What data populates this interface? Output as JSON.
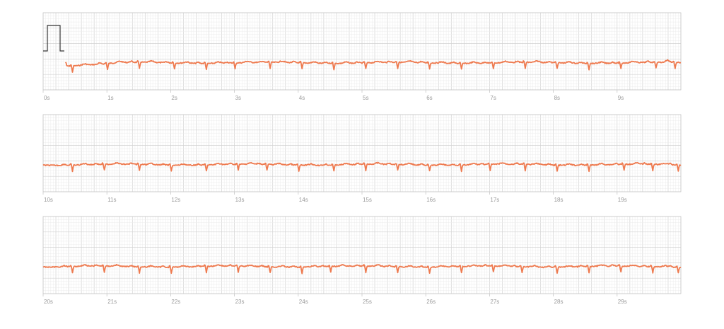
{
  "colors": {
    "trace": "#ee7a4f",
    "calibration": "#333333",
    "major_grid": "#d2d2d2",
    "minor_grid": "#ececec",
    "tick_text": "#9a9a9a"
  },
  "chart_data": {
    "type": "line",
    "title": "",
    "xlabel": "",
    "ylabel": "",
    "grid": true,
    "seconds_per_strip": 10,
    "signal_start_s": 0.35,
    "calibration_pulse": true,
    "strips": [
      {
        "xlim": [
          0,
          10
        ],
        "tick_labels": [
          "0s",
          "1s",
          "2s",
          "3s",
          "4s",
          "5s",
          "6s",
          "7s",
          "8s",
          "9s"
        ],
        "series": [
          {
            "beats_s": [
              0.45,
              1.0,
              1.5,
              2.05,
              2.55,
              3.0,
              3.55,
              4.05,
              4.55,
              5.05,
              5.55,
              6.05,
              6.55,
              7.05,
              7.55,
              8.05,
              8.55,
              9.05,
              9.6,
              9.9
            ]
          }
        ]
      },
      {
        "xlim": [
          10,
          20
        ],
        "tick_labels": [
          "10s",
          "11s",
          "12s",
          "13s",
          "14s",
          "15s",
          "16s",
          "17s",
          "18s",
          "19s"
        ],
        "series": [
          {
            "beats_s": [
              10.45,
              10.95,
              11.5,
              12.0,
              12.55,
              13.05,
              13.5,
              14.0,
              14.55,
              15.05,
              15.55,
              16.05,
              16.55,
              17.0,
              17.55,
              18.05,
              18.55,
              19.1,
              19.55,
              19.95
            ]
          }
        ]
      },
      {
        "xlim": [
          20,
          30
        ],
        "tick_labels": [
          "20s",
          "21s",
          "22s",
          "23s",
          "24s",
          "25s",
          "26s",
          "27s",
          "28s",
          "29s"
        ],
        "series": [
          {
            "beats_s": [
              20.45,
              20.95,
              21.5,
              22.0,
              22.55,
              23.05,
              23.55,
              24.05,
              24.5,
              25.05,
              25.55,
              26.05,
              26.55,
              27.05,
              27.5,
              28.05,
              28.55,
              29.05,
              29.55,
              29.95
            ]
          }
        ]
      }
    ]
  }
}
